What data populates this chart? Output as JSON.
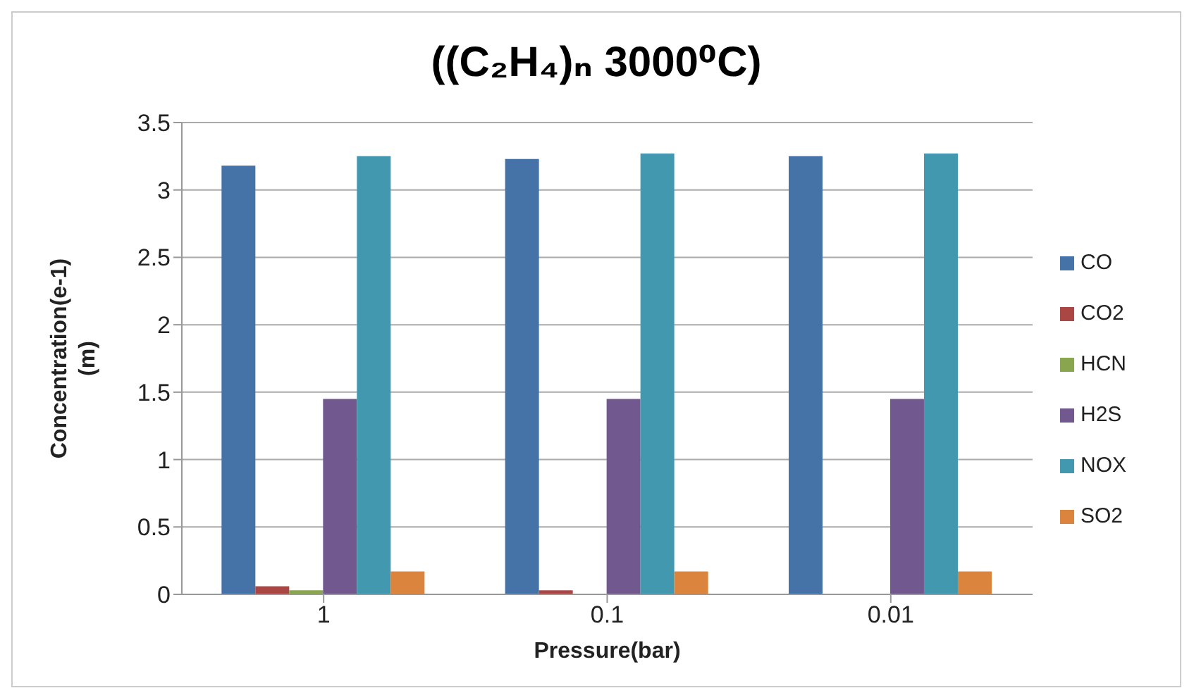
{
  "chart_data": {
    "type": "bar",
    "title": "((C₂H₄)ₙ 3000⁰C)",
    "xlabel": "Pressure(bar)",
    "ylabel": "Concentration(e-1)\n(m)",
    "categories": [
      "1",
      "0.1",
      "0.01"
    ],
    "series": [
      {
        "name": "CO",
        "color": "#4572a7",
        "values": [
          3.18,
          3.23,
          3.25
        ]
      },
      {
        "name": "CO2",
        "color": "#aa4643",
        "values": [
          0.06,
          0.03,
          0
        ]
      },
      {
        "name": "HCN",
        "color": "#89a54e",
        "values": [
          0.03,
          0,
          0
        ]
      },
      {
        "name": "H2S",
        "color": "#71588f",
        "values": [
          1.45,
          1.45,
          1.45
        ]
      },
      {
        "name": "NOX",
        "color": "#4198af",
        "values": [
          3.25,
          3.27,
          3.27
        ]
      },
      {
        "name": "SO2",
        "color": "#db843d",
        "values": [
          0.17,
          0.17,
          0.17
        ]
      }
    ],
    "ylim": [
      0,
      3.5
    ],
    "yticks": [
      0,
      0.5,
      1,
      1.5,
      2,
      2.5,
      3,
      3.5
    ],
    "grid": "y",
    "legend": "right"
  }
}
